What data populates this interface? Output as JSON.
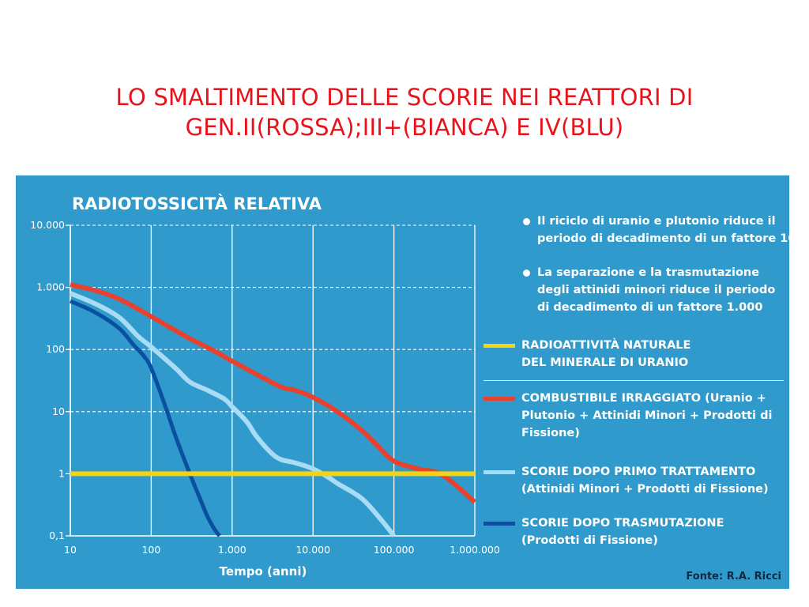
{
  "slide_title": {
    "line1": "LO SMALTIMENTO DELLE SCORIE NEI REATTORI DI",
    "line2": "GEN.II(ROSSA);III+(BIANCA) E IV(BLU)"
  },
  "bullets": [
    {
      "line1": "Il riciclo di uranio e plutonio riduce il",
      "line2": "periodo di decadimento di un fattore 10"
    },
    {
      "line1": "La separazione e la trasmutazione",
      "line2": "degli attinidi minori riduce il periodo",
      "line3": "di decadimento di un fattore 1.000"
    }
  ],
  "legend": [
    {
      "line1": "RADIOATTIVITÀ NATURALE",
      "line2": "DEL MINERALE DI URANIO",
      "color": "#f5d312"
    },
    {
      "line1": "COMBUSTIBILE IRRAGGIATO (Uranio +",
      "line2": "Plutonio + Attinidi Minori + Prodotti di",
      "line3": "Fissione)",
      "color": "#e8412e"
    },
    {
      "line1": "SCORIE DOPO PRIMO TRATTAMENTO",
      "line2": "(Attinidi Minori + Prodotti di  Fissione)",
      "color": "#a8dcf4"
    },
    {
      "line1": "SCORIE DOPO TRASMUTAZIONE",
      "line2": "(Prodotti di  Fissione)",
      "color": "#0b4fa0"
    }
  ],
  "source": "Fonte: R.A. Ricci",
  "colors": {
    "background": "#2f9acb",
    "title": "#e8121a",
    "grid": "#ffffff",
    "axis_text": "#ffffff"
  },
  "chart_data": {
    "type": "line",
    "title": "RADIOTOSSICITÀ RELATIVA",
    "xlabel": "Tempo (anni)",
    "ylabel": "",
    "x_scale": "log",
    "y_scale": "log",
    "xlim": [
      10,
      1000000
    ],
    "ylim": [
      0.1,
      10000
    ],
    "x_ticks": [
      10,
      100,
      1000,
      10000,
      100000,
      1000000
    ],
    "x_tick_labels": [
      "10",
      "100",
      "1.000",
      "10.000",
      "100.000",
      "1.000.000"
    ],
    "y_ticks": [
      0.1,
      1,
      10,
      100,
      1000,
      10000
    ],
    "y_tick_labels": [
      "0,1",
      "1",
      "10",
      "100",
      "1.000",
      "10.000"
    ],
    "grid": true,
    "legend_position": "right",
    "series": [
      {
        "name": "RADIOATTIVITÀ NATURALE DEL MINERALE DI URANIO",
        "color": "#f5d312",
        "x": [
          10,
          1000000
        ],
        "y": [
          1,
          1
        ]
      },
      {
        "name": "COMBUSTIBILE IRRAGGIATO (Uranio + Plutonio + Attinidi Minori + Prodotti di Fissione)",
        "color": "#e8412e",
        "x": [
          10,
          20,
          40,
          80,
          150,
          300,
          600,
          1000,
          2000,
          4000,
          6000,
          10000,
          20000,
          40000,
          60000,
          100000,
          200000,
          400000,
          1000000
        ],
        "y": [
          1100,
          900,
          650,
          400,
          250,
          150,
          95,
          65,
          40,
          25,
          22,
          17,
          10,
          5,
          3,
          1.6,
          1.2,
          0.95,
          0.35
        ]
      },
      {
        "name": "SCORIE DOPO PRIMO TRATTAMENTO (Attinidi Minori + Prodotti di Fissione)",
        "color": "#a8dcf4",
        "x": [
          10,
          20,
          40,
          70,
          100,
          200,
          300,
          500,
          800,
          1000,
          1500,
          2000,
          3000,
          4000,
          6000,
          10000,
          15000,
          20000,
          40000,
          70000,
          100000
        ],
        "y": [
          800,
          550,
          330,
          160,
          110,
          50,
          30,
          22,
          16,
          12,
          7,
          4,
          2.2,
          1.7,
          1.5,
          1.2,
          0.9,
          0.7,
          0.4,
          0.18,
          0.1
        ]
      },
      {
        "name": "SCORIE DOPO TRASMUTAZIONE (Prodotti di Fissione)",
        "color": "#0b4fa0",
        "x": [
          10,
          20,
          40,
          60,
          80,
          100,
          150,
          200,
          300,
          400,
          500,
          600,
          700
        ],
        "y": [
          600,
          400,
          220,
          120,
          80,
          50,
          12,
          4,
          1,
          0.4,
          0.2,
          0.13,
          0.1
        ]
      }
    ]
  }
}
